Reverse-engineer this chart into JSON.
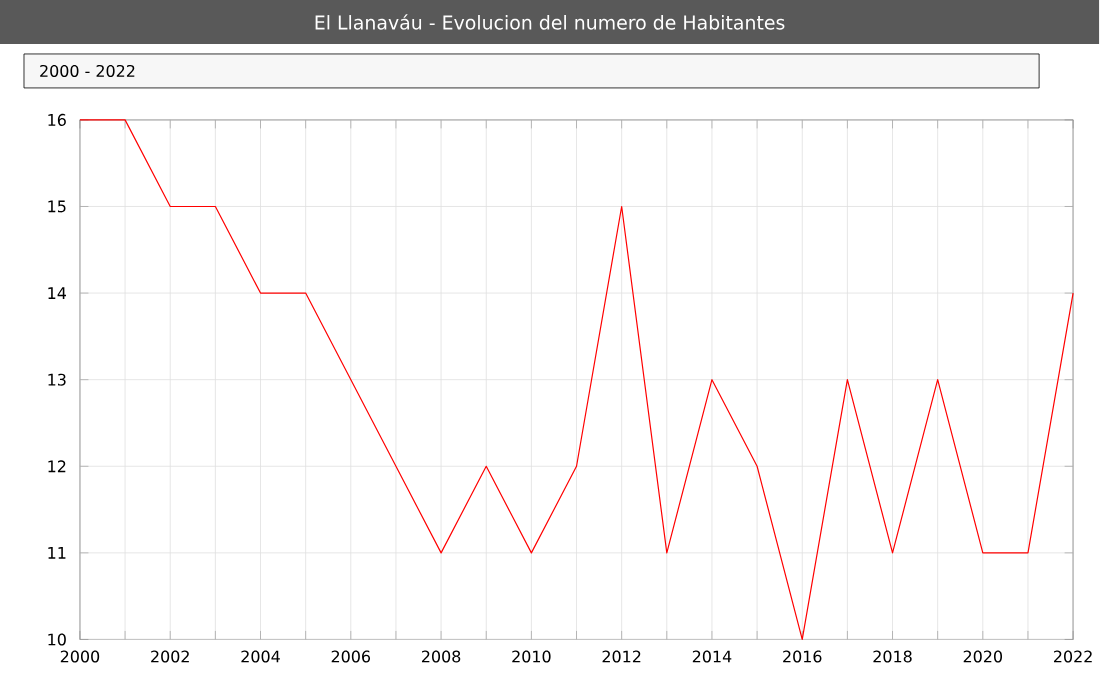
{
  "chart_data": {
    "type": "line",
    "title": "El Llanaváu - Evolucion del numero de Habitantes",
    "subtitle": "2000 - 2022",
    "x": [
      2000,
      2001,
      2002,
      2003,
      2004,
      2005,
      2006,
      2007,
      2008,
      2009,
      2010,
      2011,
      2012,
      2013,
      2014,
      2015,
      2016,
      2017,
      2018,
      2019,
      2020,
      2021,
      2022
    ],
    "series": [
      {
        "color": "#ff0000",
        "values": [
          16,
          16,
          15,
          15,
          14,
          14,
          13,
          12,
          11,
          12,
          11,
          12,
          15,
          11,
          13,
          12,
          10,
          13,
          11,
          13,
          11,
          11,
          14
        ]
      }
    ],
    "xlim": [
      2000,
      2022
    ],
    "ylim": [
      10,
      16
    ],
    "xticks": [
      2000,
      {
        "value": 2001,
        "label": null
      },
      2002,
      {
        "value": 2003,
        "label": null
      },
      2004,
      {
        "value": 2005,
        "label": null
      },
      2006,
      {
        "value": 2007,
        "label": null
      },
      2008,
      {
        "value": 2009,
        "label": null
      },
      2010,
      {
        "value": 2011,
        "label": null
      },
      2012,
      {
        "value": 2013,
        "label": null
      },
      2014,
      {
        "value": 2015,
        "label": null
      },
      2016,
      {
        "value": 2017,
        "label": null
      },
      2018,
      {
        "value": 2019,
        "label": null
      },
      2020,
      {
        "value": 2021,
        "label": null
      },
      2022
    ],
    "yticks": [
      10,
      11,
      12,
      13,
      14,
      15,
      16
    ],
    "grid": true
  }
}
